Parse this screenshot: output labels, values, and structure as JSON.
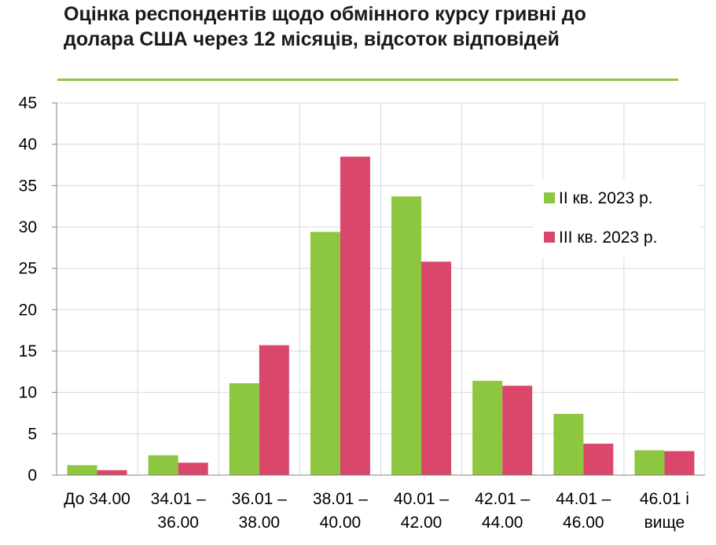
{
  "chart_data": {
    "type": "bar",
    "title": "Оцінка респондентів щодо обмінного курсу гривні до долара США через 12 місяців, відсоток відповідей",
    "categories": [
      [
        "До 34.00"
      ],
      [
        "34.01 –",
        "36.00"
      ],
      [
        "36.01 –",
        "38.00"
      ],
      [
        "38.01 –",
        "40.00"
      ],
      [
        "40.01 –",
        "42.00"
      ],
      [
        "42.01 –",
        "44.00"
      ],
      [
        "44.01 –",
        "46.00"
      ],
      [
        "46.01 і",
        "вище"
      ]
    ],
    "series": [
      {
        "name": "II кв. 2023 р.",
        "color": "#8dc63f",
        "values": [
          1.2,
          2.4,
          11.1,
          29.4,
          33.7,
          11.4,
          7.4,
          3.0
        ]
      },
      {
        "name": "III кв. 2023 р.",
        "color": "#d9476a",
        "values": [
          0.6,
          1.5,
          15.7,
          38.5,
          25.8,
          10.8,
          3.8,
          2.9
        ]
      }
    ],
    "ylim": [
      0,
      45
    ],
    "yticks": [
      0,
      5,
      10,
      15,
      20,
      25,
      30,
      35,
      40,
      45
    ],
    "xlabel": "",
    "ylabel": "",
    "grid": true,
    "legend_position": "right"
  }
}
